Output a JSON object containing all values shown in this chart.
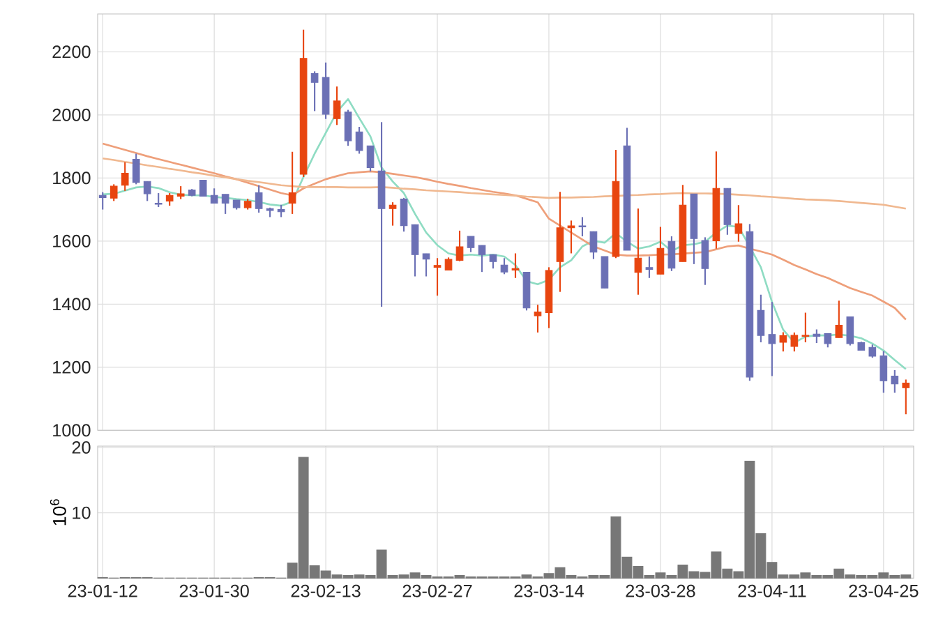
{
  "chart_data": [
    {
      "type": "candlestick",
      "categories": [
        null,
        null,
        null,
        null,
        null,
        null,
        null,
        null,
        null,
        null,
        null,
        null,
        null,
        null,
        null,
        null,
        null,
        null,
        null,
        null,
        null,
        null,
        null,
        null,
        null,
        null,
        null,
        null,
        null,
        null,
        null,
        null,
        null,
        null,
        null,
        null,
        null,
        null,
        null,
        null,
        null,
        null,
        null,
        null,
        null,
        null,
        null,
        null,
        null,
        null,
        null,
        null,
        null,
        null,
        null,
        null,
        null,
        null,
        null,
        null,
        null,
        null,
        null,
        null,
        null,
        null,
        null,
        null,
        null,
        null,
        null,
        null,
        null
      ],
      "ohlc": [
        [
          1745,
          1755,
          1700,
          1738
        ],
        [
          1736,
          1780,
          1727,
          1774
        ],
        [
          1777,
          1850,
          1759,
          1815
        ],
        [
          1859,
          1877,
          1780,
          1786
        ],
        [
          1789,
          1789,
          1727,
          1750
        ],
        [
          1720,
          1752,
          1708,
          1717
        ],
        [
          1727,
          1752,
          1712,
          1745
        ],
        [
          1742,
          1774,
          1733,
          1750
        ],
        [
          1762,
          1765,
          1742,
          1745
        ],
        [
          1793,
          1793,
          1742,
          1742
        ],
        [
          1745,
          1767,
          1720,
          1720
        ],
        [
          1748,
          1748,
          1686,
          1720
        ],
        [
          1730,
          1730,
          1700,
          1706
        ],
        [
          1706,
          1734,
          1700,
          1726
        ],
        [
          1753,
          1777,
          1690,
          1703
        ],
        [
          1703,
          1706,
          1676,
          1697
        ],
        [
          1700,
          1715,
          1676,
          1693
        ],
        [
          1720,
          1883,
          1686,
          1753
        ],
        [
          1812,
          2270,
          1803,
          2179
        ],
        [
          2131,
          2138,
          2012,
          2103
        ],
        [
          2119,
          2166,
          1987,
          2002
        ],
        [
          1988,
          2090,
          1968,
          2044
        ],
        [
          2009,
          2016,
          1902,
          1918
        ],
        [
          1946,
          1962,
          1877,
          1887
        ],
        [
          1902,
          1902,
          1821,
          1833
        ],
        [
          1822,
          1977,
          1392,
          1703
        ],
        [
          1703,
          1723,
          1649,
          1714
        ],
        [
          1733,
          1737,
          1630,
          1649
        ],
        [
          1652,
          1652,
          1488,
          1557
        ],
        [
          1560,
          1560,
          1488,
          1543
        ],
        [
          1517,
          1546,
          1427,
          1523
        ],
        [
          1508,
          1548,
          1508,
          1542
        ],
        [
          1539,
          1633,
          1536,
          1582
        ],
        [
          1615,
          1615,
          1565,
          1579
        ],
        [
          1586,
          1586,
          1502,
          1557
        ],
        [
          1557,
          1557,
          1513,
          1535
        ],
        [
          1524,
          1546,
          1495,
          1502
        ],
        [
          1508,
          1561,
          1483,
          1513
        ],
        [
          1501,
          1501,
          1380,
          1388
        ],
        [
          1363,
          1398,
          1310,
          1375
        ],
        [
          1373,
          1517,
          1324,
          1507
        ],
        [
          1535,
          1756,
          1439,
          1642
        ],
        [
          1642,
          1665,
          1561,
          1648
        ],
        [
          1648,
          1676,
          1615,
          1645
        ],
        [
          1630,
          1630,
          1543,
          1565
        ],
        [
          1551,
          1551,
          1451,
          1451
        ],
        [
          1551,
          1889,
          1546,
          1789
        ],
        [
          1902,
          1959,
          1571,
          1571
        ],
        [
          1501,
          1703,
          1430,
          1546
        ],
        [
          1516,
          1551,
          1483,
          1510
        ],
        [
          1495,
          1645,
          1495,
          1577
        ],
        [
          1599,
          1615,
          1505,
          1514
        ],
        [
          1535,
          1778,
          1535,
          1714
        ],
        [
          1749,
          1749,
          1527,
          1608
        ],
        [
          1602,
          1612,
          1461,
          1513
        ],
        [
          1601,
          1884,
          1576,
          1767
        ],
        [
          1767,
          1767,
          1620,
          1652
        ],
        [
          1624,
          1714,
          1598,
          1655
        ],
        [
          1630,
          1654,
          1157,
          1169
        ],
        [
          1380,
          1430,
          1279,
          1301
        ],
        [
          1304,
          1407,
          1172,
          1275
        ],
        [
          1279,
          1311,
          1250,
          1300
        ],
        [
          1266,
          1310,
          1250,
          1301
        ],
        [
          1298,
          1373,
          1279,
          1301
        ],
        [
          1305,
          1320,
          1277,
          1298
        ],
        [
          1307,
          1307,
          1263,
          1275
        ],
        [
          1294,
          1411,
          1294,
          1333
        ],
        [
          1360,
          1360,
          1269,
          1275
        ],
        [
          1278,
          1281,
          1254,
          1254
        ],
        [
          1263,
          1272,
          1230,
          1235
        ],
        [
          1236,
          1251,
          1119,
          1157
        ],
        [
          1172,
          1191,
          1119,
          1147
        ],
        [
          1135,
          1161,
          1051,
          1150
        ]
      ],
      "colors": [
        "#6b70b5",
        "#e8450f",
        "#e8450f",
        "#6b70b5",
        "#6b70b5",
        "#6b70b5",
        "#e8450f",
        "#e8450f",
        "#6b70b5",
        "#6b70b5",
        "#6b70b5",
        "#6b70b5",
        "#6b70b5",
        "#e8450f",
        "#6b70b5",
        "#6b70b5",
        "#6b70b5",
        "#e8450f",
        "#e8450f",
        "#6b70b5",
        "#6b70b5",
        "#e8450f",
        "#6b70b5",
        "#6b70b5",
        "#6b70b5",
        "#6b70b5",
        "#e8450f",
        "#6b70b5",
        "#6b70b5",
        "#6b70b5",
        "#e8450f",
        "#e8450f",
        "#e8450f",
        "#6b70b5",
        "#6b70b5",
        "#6b70b5",
        "#6b70b5",
        "#e8450f",
        "#6b70b5",
        "#e8450f",
        "#e8450f",
        "#e8450f",
        "#e8450f",
        "#6b70b5",
        "#6b70b5",
        "#6b70b5",
        "#e8450f",
        "#6b70b5",
        "#e8450f",
        "#6b70b5",
        "#e8450f",
        "#6b70b5",
        "#e8450f",
        "#6b70b5",
        "#6b70b5",
        "#e8450f",
        "#6b70b5",
        "#e8450f",
        "#6b70b5",
        "#6b70b5",
        "#6b70b5",
        "#e8450f",
        "#e8450f",
        "#e8450f",
        "#6b70b5",
        "#6b70b5",
        "#e8450f",
        "#6b70b5",
        "#6b70b5",
        "#6b70b5",
        "#6b70b5",
        "#6b70b5",
        "#e8450f"
      ],
      "series": [
        {
          "type": "line",
          "color": "#8fdcc3",
          "values": [
            1748,
            1750,
            1760,
            1770,
            1773,
            1768,
            1755,
            1747,
            1745,
            1745,
            1740,
            1737,
            1733,
            1730,
            1724,
            1716,
            1712,
            1725,
            1803,
            1877,
            1943,
            2009,
            2050,
            1990,
            1932,
            1833,
            1789,
            1752,
            1686,
            1627,
            1587,
            1561,
            1554,
            1557,
            1554,
            1557,
            1551,
            1524,
            1473,
            1463,
            1477,
            1517,
            1539,
            1583,
            1601,
            1595,
            1625,
            1598,
            1576,
            1583,
            1598,
            1568,
            1587,
            1590,
            1598,
            1627,
            1649,
            1645,
            1583,
            1517,
            1407,
            1319,
            1278,
            1297,
            1301,
            1301,
            1304,
            1300,
            1292,
            1275,
            1253,
            1223,
            1194
          ]
        },
        {
          "type": "line",
          "color": "#ee9f7a",
          "values": [
            1909,
            1899,
            1889,
            1879,
            1869,
            1860,
            1851,
            1842,
            1833,
            1824,
            1815,
            1805,
            1796,
            1785,
            1774,
            1763,
            1752,
            1745,
            1767,
            1782,
            1796,
            1806,
            1815,
            1818,
            1821,
            1818,
            1813,
            1808,
            1803,
            1796,
            1788,
            1781,
            1775,
            1768,
            1762,
            1756,
            1751,
            1745,
            1734,
            1723,
            1671,
            1649,
            1627,
            1605,
            1583,
            1570,
            1557,
            1554,
            1554,
            1555,
            1557,
            1558,
            1560,
            1563,
            1565,
            1574,
            1583,
            1586,
            1576,
            1567,
            1557,
            1541,
            1524,
            1510,
            1495,
            1483,
            1467,
            1451,
            1439,
            1427,
            1408,
            1388,
            1351
          ]
        },
        {
          "type": "line",
          "color": "#f0b890",
          "values": [
            1862,
            1857,
            1851,
            1846,
            1840,
            1835,
            1829,
            1824,
            1818,
            1813,
            1807,
            1802,
            1796,
            1791,
            1787,
            1782,
            1777,
            1774,
            1771,
            1771,
            1771,
            1771,
            1770,
            1770,
            1770,
            1771,
            1769,
            1766,
            1764,
            1761,
            1759,
            1757,
            1755,
            1752,
            1750,
            1748,
            1746,
            1744,
            1741,
            1739,
            1737,
            1738,
            1738,
            1739,
            1740,
            1742,
            1743,
            1745,
            1746,
            1748,
            1749,
            1751,
            1752,
            1751,
            1751,
            1750,
            1749,
            1747,
            1745,
            1742,
            1740,
            1737,
            1734,
            1732,
            1731,
            1729,
            1727,
            1724,
            1721,
            1718,
            1715,
            1709,
            1703
          ]
        }
      ],
      "ylim": [
        1000,
        2320
      ],
      "yticks": [
        1000,
        1200,
        1400,
        1600,
        1800,
        2000,
        2200
      ],
      "grid": true,
      "tick_labels": "y"
    },
    {
      "type": "bar",
      "categories": [
        "23-01-12",
        null,
        null,
        null,
        null,
        null,
        null,
        null,
        null,
        null,
        "23-01-30",
        null,
        null,
        null,
        null,
        null,
        null,
        null,
        null,
        null,
        "23-02-13",
        null,
        null,
        null,
        null,
        null,
        null,
        null,
        null,
        null,
        "23-02-27",
        null,
        null,
        null,
        null,
        null,
        null,
        null,
        null,
        null,
        "23-03-14",
        null,
        null,
        null,
        null,
        null,
        null,
        null,
        null,
        null,
        "23-03-28",
        null,
        null,
        null,
        null,
        null,
        null,
        null,
        null,
        null,
        "23-04-11",
        null,
        null,
        null,
        null,
        null,
        null,
        null,
        null,
        null,
        "23-04-25",
        null,
        null
      ],
      "values": [
        0.1,
        0,
        0.1,
        0.1,
        0.1,
        0,
        0,
        0,
        0,
        0,
        0,
        0,
        0,
        0,
        0.1,
        0.1,
        0,
        2.3,
        18.5,
        1.9,
        1.1,
        0.5,
        0.4,
        0.5,
        0.4,
        4.3,
        0.4,
        0.5,
        0.8,
        0.4,
        0.2,
        0.2,
        0.4,
        0.2,
        0.2,
        0.2,
        0.2,
        0.2,
        0.5,
        0.2,
        0.7,
        1.6,
        0.4,
        0.2,
        0.4,
        0.4,
        9.4,
        3.2,
        1.8,
        0.4,
        0.8,
        0.4,
        2.0,
        1.0,
        0.9,
        4.0,
        1.4,
        1.0,
        17.9,
        6.8,
        2.4,
        0.5,
        0.5,
        0.8,
        0.4,
        0.4,
        1.4,
        0.5,
        0.4,
        0.4,
        0.8,
        0.4,
        0.5
      ],
      "color": "#777777",
      "ylim": [
        0,
        20.2
      ],
      "yticks": [
        10,
        20
      ],
      "ylabel": "10$^{6}$",
      "grid": true
    }
  ]
}
